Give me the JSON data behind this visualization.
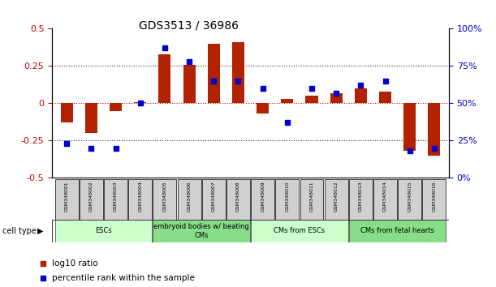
{
  "title": "GDS3513 / 36986",
  "samples": [
    "GSM348001",
    "GSM348002",
    "GSM348003",
    "GSM348004",
    "GSM348005",
    "GSM348006",
    "GSM348007",
    "GSM348008",
    "GSM348009",
    "GSM348010",
    "GSM348011",
    "GSM348012",
    "GSM348013",
    "GSM348014",
    "GSM348015",
    "GSM348016"
  ],
  "log10_ratio": [
    -0.13,
    -0.2,
    -0.05,
    0.01,
    0.33,
    0.26,
    0.4,
    0.41,
    -0.07,
    0.03,
    0.05,
    0.07,
    0.1,
    0.08,
    -0.32,
    -0.35
  ],
  "percentile_rank": [
    23,
    20,
    20,
    50,
    87,
    78,
    65,
    65,
    60,
    37,
    60,
    57,
    62,
    65,
    18,
    20
  ],
  "bar_color": "#b22200",
  "dot_color": "#0000cc",
  "background_color": "#ffffff",
  "ylim_left": [
    -0.5,
    0.5
  ],
  "ylim_right": [
    0,
    100
  ],
  "yticks_left": [
    -0.5,
    -0.25,
    0,
    0.25,
    0.5
  ],
  "yticks_right": [
    0,
    25,
    50,
    75,
    100
  ],
  "groups": [
    {
      "label": "ESCs",
      "start": 0,
      "end": 3,
      "color": "#ccffcc"
    },
    {
      "label": "embryoid bodies w/ beating\nCMs",
      "start": 4,
      "end": 7,
      "color": "#88dd88"
    },
    {
      "label": "CMs from ESCs",
      "start": 8,
      "end": 11,
      "color": "#ccffcc"
    },
    {
      "label": "CMs from fetal hearts",
      "start": 12,
      "end": 15,
      "color": "#88dd88"
    }
  ],
  "legend_red_label": "log10 ratio",
  "legend_blue_label": "percentile rank within the sample",
  "bar_width": 0.5
}
